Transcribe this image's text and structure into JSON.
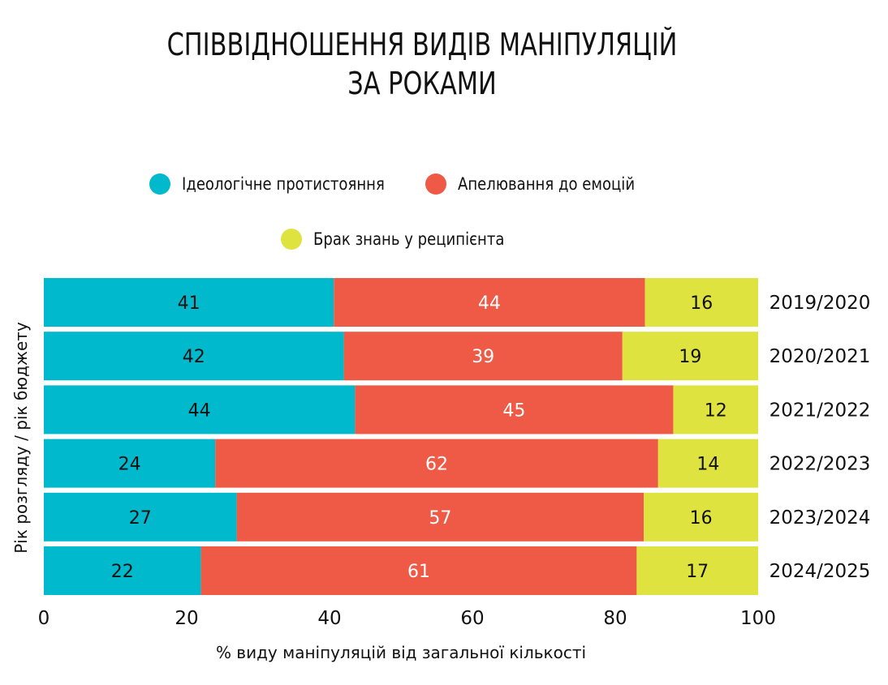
{
  "title": {
    "line1": "СПІВВІДНОШЕННЯ ВИДІВ МАНІПУЛЯЦІЙ",
    "line2": "ЗА РОКАМИ"
  },
  "chart_data": {
    "type": "bar",
    "orientation": "horizontal",
    "stacked": true,
    "title": "СПІВВІДНОШЕННЯ ВИДІВ МАНІПУЛЯЦІЙ ЗА РОКАМИ",
    "categories": [
      "2019/2020",
      "2020/2021",
      "2021/2022",
      "2022/2023",
      "2023/2024",
      "2024/2025"
    ],
    "series": [
      {
        "name": "Ідеологічне протистояння",
        "color": "#00b9cc",
        "label_color": "#111111",
        "values": [
          41,
          42,
          44,
          24,
          27,
          22
        ]
      },
      {
        "name": "Апелювання до емоцій",
        "color": "#ef5a47",
        "label_color": "#ffffff",
        "values": [
          44,
          39,
          45,
          62,
          57,
          61
        ]
      },
      {
        "name": "Брак знань у реципієнта",
        "color": "#dee33f",
        "label_color": "#111111",
        "values": [
          16,
          19,
          12,
          14,
          16,
          17
        ]
      }
    ],
    "xlabel": "% виду маніпуляцій від загальної кількості",
    "ylabel": "Рік розгляду / рік бюджету",
    "xlim": [
      0,
      100
    ],
    "xticks": [
      0,
      20,
      40,
      60,
      80,
      100
    ],
    "grid": false,
    "legend_position": "top",
    "category_labels_side": "right"
  }
}
